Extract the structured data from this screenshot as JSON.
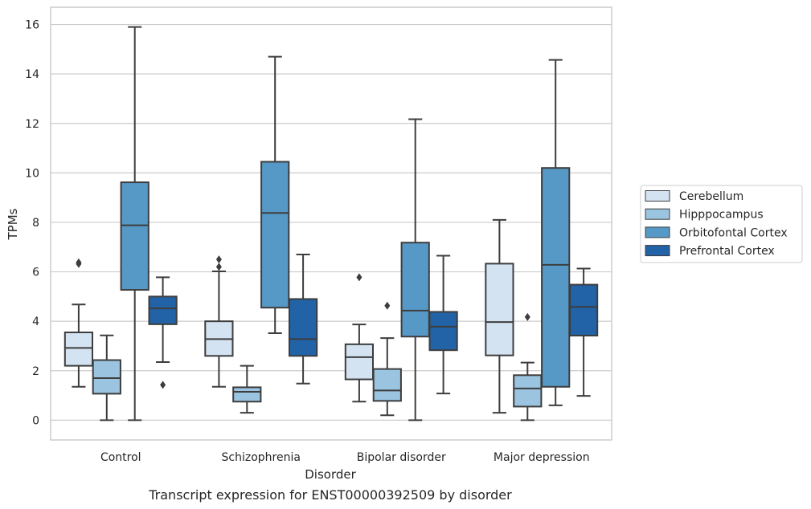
{
  "chart_data": {
    "type": "box",
    "caption": "Transcript expression for ENST00000392509 by disorder",
    "xlabel": "Disorder",
    "ylabel": "TPMs",
    "ylim": [
      -0.8,
      16.7
    ],
    "yticks": [
      0,
      2,
      4,
      6,
      8,
      10,
      12,
      14,
      16
    ],
    "grid": "horizontal",
    "legend_position": "right",
    "categories": [
      "Control",
      "Schizophrenia",
      "Bipolar disorder",
      "Major depression"
    ],
    "series": [
      {
        "name": "Cerebellum",
        "color": "#d4e3f2",
        "boxes": [
          {
            "whisker_low": 1.35,
            "q1": 2.2,
            "median": 2.92,
            "q3": 3.55,
            "whisker_high": 4.68,
            "outliers": [
              6.32,
              6.38
            ]
          },
          {
            "whisker_low": 1.35,
            "q1": 2.6,
            "median": 3.28,
            "q3": 4.0,
            "whisker_high": 6.02,
            "outliers": [
              6.2,
              6.5
            ]
          },
          {
            "whisker_low": 0.75,
            "q1": 1.65,
            "median": 2.55,
            "q3": 3.07,
            "whisker_high": 3.87,
            "outliers": [
              5.78
            ]
          },
          {
            "whisker_low": 0.3,
            "q1": 2.62,
            "median": 3.97,
            "q3": 6.33,
            "whisker_high": 8.1,
            "outliers": []
          }
        ]
      },
      {
        "name": "Hipppocampus",
        "color": "#9bc4e0",
        "boxes": [
          {
            "whisker_low": 0.0,
            "q1": 1.07,
            "median": 1.7,
            "q3": 2.43,
            "whisker_high": 3.43,
            "outliers": []
          },
          {
            "whisker_low": 0.3,
            "q1": 0.75,
            "median": 1.15,
            "q3": 1.33,
            "whisker_high": 2.2,
            "outliers": []
          },
          {
            "whisker_low": 0.2,
            "q1": 0.78,
            "median": 1.2,
            "q3": 2.07,
            "whisker_high": 3.32,
            "outliers": [
              4.63
            ]
          },
          {
            "whisker_low": 0.0,
            "q1": 0.55,
            "median": 1.28,
            "q3": 1.82,
            "whisker_high": 2.33,
            "outliers": [
              4.17
            ]
          }
        ]
      },
      {
        "name": "Orbitofontal Cortex",
        "color": "#5799c6",
        "boxes": [
          {
            "whisker_low": 0.0,
            "q1": 5.27,
            "median": 7.88,
            "q3": 9.62,
            "whisker_high": 15.9,
            "outliers": []
          },
          {
            "whisker_low": 3.52,
            "q1": 4.55,
            "median": 8.38,
            "q3": 10.45,
            "whisker_high": 14.7,
            "outliers": []
          },
          {
            "whisker_low": 0.0,
            "q1": 3.38,
            "median": 4.43,
            "q3": 7.18,
            "whisker_high": 12.17,
            "outliers": []
          },
          {
            "whisker_low": 0.6,
            "q1": 1.35,
            "median": 6.28,
            "q3": 10.2,
            "whisker_high": 14.57,
            "outliers": []
          }
        ]
      },
      {
        "name": "Prefrontal Cortex",
        "color": "#2262a6",
        "boxes": [
          {
            "whisker_low": 2.35,
            "q1": 3.88,
            "median": 4.52,
            "q3": 5.0,
            "whisker_high": 5.78,
            "outliers": [
              1.43
            ]
          },
          {
            "whisker_low": 1.48,
            "q1": 2.6,
            "median": 3.28,
            "q3": 4.9,
            "whisker_high": 6.7,
            "outliers": []
          },
          {
            "whisker_low": 1.08,
            "q1": 2.83,
            "median": 3.78,
            "q3": 4.38,
            "whisker_high": 6.65,
            "outliers": []
          },
          {
            "whisker_low": 0.98,
            "q1": 3.42,
            "median": 4.58,
            "q3": 5.48,
            "whisker_high": 6.13,
            "outliers": []
          }
        ]
      }
    ]
  },
  "style": {
    "grid_color": "#cccccc",
    "frame_color": "#cccccc",
    "line_color": "#3d3d3d",
    "text_color": "#262626"
  }
}
